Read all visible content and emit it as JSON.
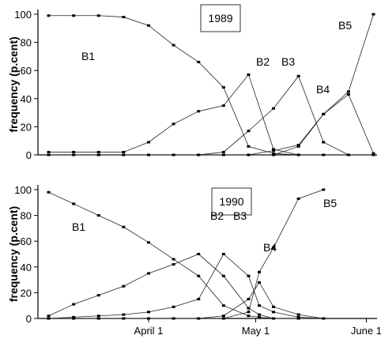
{
  "chart_data": [
    {
      "type": "line",
      "title": "1989",
      "ylabel": "frequency (p.cent)",
      "ylim": [
        0,
        100
      ],
      "yticks": [
        "0",
        "20",
        "40",
        "60",
        "80",
        "100"
      ],
      "x": [
        3,
        10,
        17,
        24,
        31,
        38,
        45,
        52,
        59,
        66,
        73,
        80,
        87,
        94
      ],
      "series": [
        {
          "name": "B1",
          "values": [
            99,
            99,
            99,
            98,
            92,
            78,
            66,
            48,
            6,
            1,
            0,
            0,
            0,
            0
          ]
        },
        {
          "name": "B2",
          "values": [
            2,
            2,
            2,
            2,
            9,
            22,
            31,
            35,
            57,
            4,
            0,
            0,
            0,
            0
          ]
        },
        {
          "name": "B3",
          "values": [
            0,
            0,
            0,
            0,
            0,
            0,
            0,
            2,
            17,
            33,
            56,
            9,
            0,
            0
          ]
        },
        {
          "name": "B4",
          "values": [
            0,
            0,
            0,
            0,
            0,
            0,
            0,
            0,
            0,
            3,
            7,
            29,
            43,
            1
          ]
        },
        {
          "name": "B5",
          "values": [
            0,
            0,
            0,
            0,
            0,
            0,
            0,
            0,
            0,
            0,
            6,
            29,
            45,
            100
          ]
        }
      ]
    },
    {
      "type": "line",
      "title": "1990",
      "ylabel": "frequency (p.cent)",
      "ylim": [
        0,
        100
      ],
      "yticks": [
        "0",
        "20",
        "40",
        "60",
        "80",
        "100"
      ],
      "xtick_values": [
        31,
        61,
        92
      ],
      "xticks": [
        "April 1",
        "May 1",
        "June 1"
      ],
      "x": [
        3,
        10,
        17,
        24,
        31,
        38,
        45,
        52,
        59,
        62,
        66,
        73,
        80
      ],
      "series": [
        {
          "name": "B1",
          "values": [
            98,
            89,
            80,
            71,
            59,
            46,
            33,
            10,
            2,
            1,
            0,
            0,
            0
          ]
        },
        {
          "name": "B2",
          "values": [
            2,
            11,
            18,
            25,
            35,
            42,
            50,
            33,
            8,
            3,
            0,
            0,
            0
          ]
        },
        {
          "name": "B3",
          "values": [
            0,
            1,
            2,
            3,
            5,
            9,
            15,
            50,
            33,
            10,
            5,
            1,
            0
          ]
        },
        {
          "name": "B4",
          "values": [
            0,
            0,
            0,
            0,
            0,
            0,
            0,
            2,
            15,
            28,
            9,
            3,
            0
          ]
        },
        {
          "name": "B5",
          "values": [
            0,
            0,
            0,
            0,
            0,
            0,
            0,
            0,
            5,
            36,
            55,
            93,
            100
          ]
        }
      ]
    }
  ]
}
